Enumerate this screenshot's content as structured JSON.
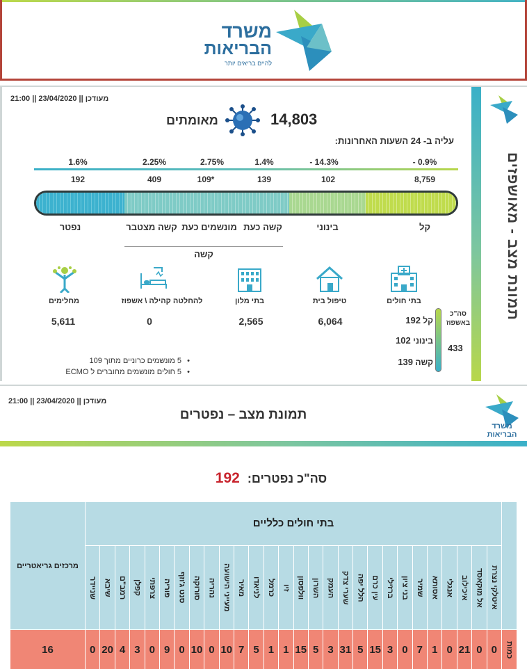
{
  "header": {
    "logo_line1": "משרד",
    "logo_line2": "הבריאות",
    "logo_tagline": "להיים בריאים יותר",
    "colors": {
      "brand_blue": "#2c6e9e",
      "accent_green": "#bcd84a",
      "accent_teal": "#44b3c4"
    }
  },
  "panel1": {
    "updated": "21:00 || 23/04/2020 || מעודכן",
    "sidebar_title": "תמונת מצב - מאושפזים",
    "confirmed_count": "14,803",
    "confirmed_label": "מאומתים",
    "rise_title": "עליה ב- 24 השעות האחרונות:",
    "severity_columns": [
      {
        "label": "קל",
        "count": "8,759",
        "pct": "- 0.9%"
      },
      {
        "label": "בינוני",
        "count": "102",
        "pct": "- 14.3%"
      },
      {
        "label": "קשה כעת",
        "count": "139",
        "pct": "1.4%"
      },
      {
        "label": "מונשמים כעת",
        "count": "109*",
        "pct": "2.75%"
      },
      {
        "label": "קשה מצטבר",
        "count": "409",
        "pct": "2.25%"
      },
      {
        "label": "נפטר",
        "count": "192",
        "pct": "1.6%"
      }
    ],
    "severe_group_label": "קשה",
    "locations": [
      {
        "label": "בתי חולים",
        "value": "",
        "icon": "hospital-icon"
      },
      {
        "label": "טיפול בית",
        "value": "6,064",
        "icon": "house-icon"
      },
      {
        "label": "בתי מלון",
        "value": "2,565",
        "icon": "hotel-icon"
      },
      {
        "label": "להחלטה קהילה \\ אשפוז",
        "value": "0",
        "icon": "hospital-bed-icon"
      },
      {
        "label": "מחלימים",
        "value": "5,611",
        "icon": "recovered-person-icon"
      }
    ],
    "hospital_breakdown": {
      "total_label": "סה\"כ באשפוז",
      "total": "433",
      "rows": [
        {
          "label": "קל",
          "value": "192"
        },
        {
          "label": "בינוני",
          "value": "102"
        },
        {
          "label": "קשה",
          "value": "139"
        }
      ]
    },
    "notes": [
      "5 מונשמים כרוניים מתוך 109",
      "5 חולים מונשמים מחוברים ל ECMO"
    ]
  },
  "panel2": {
    "updated": "21:00 || 23/04/2020 || מעודכן",
    "title": "תמונת מצב – נפטרים",
    "logo_line1": "משרד",
    "logo_line2": "הבריאות",
    "total_label": "סה\"כ נפטרים:",
    "total_value": "192",
    "table": {
      "group_header": "בתי חולים כלליים",
      "geriatric_header": "מרכזים גריאטריים",
      "row_label": "כמות",
      "hospitals": [
        {
          "name": "איטלקי נצרת",
          "value": "0"
        },
        {
          "name": "אל מוקאסד",
          "value": "0"
        },
        {
          "name": "איכילוב",
          "value": "21"
        },
        {
          "name": "אנגלי",
          "value": "0"
        },
        {
          "name": "אסותא",
          "value": "1"
        },
        {
          "name": "שמיר",
          "value": "7"
        },
        {
          "name": "בני ציון",
          "value": "0"
        },
        {
          "name": "ברזילי",
          "value": "3"
        },
        {
          "name": "עין כרם",
          "value": "15"
        },
        {
          "name": "הלל יפה",
          "value": "5"
        },
        {
          "name": "שערי צדק",
          "value": "31"
        },
        {
          "name": "העמק",
          "value": "3"
        },
        {
          "name": "השרון",
          "value": "5"
        },
        {
          "name": "וולפסון",
          "value": "15"
        },
        {
          "name": "זיו",
          "value": "1"
        },
        {
          "name": "כרמל",
          "value": "1"
        },
        {
          "name": "לניאדו",
          "value": "5"
        },
        {
          "name": "מאיר",
          "value": "7"
        },
        {
          "name": "מעייני הישועה",
          "value": "10"
        },
        {
          "name": "נהריה",
          "value": "0"
        },
        {
          "name": "סורוקה",
          "value": "10"
        },
        {
          "name": "סנט ג'וזף",
          "value": "0"
        },
        {
          "name": "פוריה",
          "value": "9"
        },
        {
          "name": "צרפתי",
          "value": "0"
        },
        {
          "name": "קפלן",
          "value": "3"
        },
        {
          "name": "רמב\"ם",
          "value": "4"
        },
        {
          "name": "שיבא",
          "value": "20"
        },
        {
          "name": "שניידר",
          "value": "0"
        }
      ],
      "geriatric_value": "16",
      "colors": {
        "header_bg": "#b7dbe4",
        "value_bg": "#f08675",
        "total_red": "#c8232c"
      }
    }
  }
}
